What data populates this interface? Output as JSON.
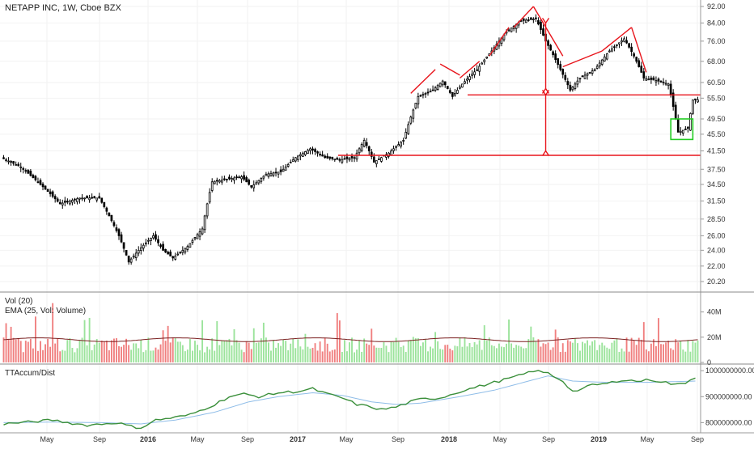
{
  "header": {
    "title": "NETAPP INC, 1W, Cboe BZX"
  },
  "colors": {
    "up": "#9be39b",
    "down": "#f07f7f",
    "candle": "#000000",
    "pattern": "#e8141b",
    "highlight": "#22cc22",
    "accum": "#3a8f3a",
    "accum_ma": "#8fbde8",
    "ema": "#7a1f1f",
    "grid": "#f2f2f2",
    "axis": "#555555"
  },
  "chart_data": [
    {
      "type": "candlestick",
      "title": "NETAPP INC, 1W, Cboe BZX",
      "x_labels": [
        "May",
        "Sep",
        "2016",
        "May",
        "Sep",
        "2017",
        "May",
        "Sep",
        "2018",
        "May",
        "Sep",
        "2019",
        "May",
        "Sep"
      ],
      "y_ticks": [
        "92.00",
        "84.00",
        "76.00",
        "68.00",
        "60.50",
        "55.50",
        "49.50",
        "45.50",
        "41.50",
        "37.50",
        "34.50",
        "31.50",
        "28.50",
        "26.00",
        "24.00",
        "22.00",
        "20.20"
      ],
      "ylim": [
        20.2,
        92
      ],
      "y_scale": "log",
      "key_points": [
        [
          0,
          40
        ],
        [
          8,
          38
        ],
        [
          16,
          34.5
        ],
        [
          24,
          31
        ],
        [
          32,
          32
        ],
        [
          40,
          32
        ],
        [
          48,
          26
        ],
        [
          52,
          22.5
        ],
        [
          56,
          24
        ],
        [
          62,
          26
        ],
        [
          66,
          24
        ],
        [
          70,
          23
        ],
        [
          76,
          24.5
        ],
        [
          82,
          27
        ],
        [
          86,
          35
        ],
        [
          92,
          35.5
        ],
        [
          98,
          36
        ],
        [
          102,
          34
        ],
        [
          108,
          36.5
        ],
        [
          114,
          37
        ],
        [
          120,
          40
        ],
        [
          126,
          42
        ],
        [
          132,
          40
        ],
        [
          138,
          39.5
        ],
        [
          144,
          40
        ],
        [
          148,
          44
        ],
        [
          152,
          39
        ],
        [
          158,
          41
        ],
        [
          164,
          44
        ],
        [
          170,
          56
        ],
        [
          176,
          58
        ],
        [
          180,
          61
        ],
        [
          184,
          56
        ],
        [
          188,
          60
        ],
        [
          194,
          65
        ],
        [
          200,
          72
        ],
        [
          206,
          80
        ],
        [
          212,
          85
        ],
        [
          218,
          86
        ],
        [
          222,
          76
        ],
        [
          228,
          65
        ],
        [
          232,
          58
        ],
        [
          236,
          62
        ],
        [
          242,
          65
        ],
        [
          248,
          72
        ],
        [
          254,
          77
        ],
        [
          258,
          70
        ],
        [
          262,
          62
        ],
        [
          268,
          61
        ],
        [
          272,
          60
        ],
        [
          276,
          46
        ],
        [
          280,
          47
        ],
        [
          282,
          55
        ]
      ],
      "horizontal_levels": [
        56.5,
        40.5
      ],
      "pattern_segments": [
        [
          [
            166,
            57
          ],
          [
            176,
            65
          ]
        ],
        [
          [
            178,
            67
          ],
          [
            186,
            63
          ]
        ],
        [
          [
            186,
            62
          ],
          [
            194,
            68
          ]
        ],
        [
          [
            198,
            70
          ],
          [
            206,
            82
          ]
        ],
        [
          [
            208,
            82
          ],
          [
            216,
            92
          ]
        ],
        [
          [
            216,
            92
          ],
          [
            228,
            70
          ]
        ],
        [
          [
            228,
            66
          ],
          [
            244,
            72
          ]
        ],
        [
          [
            244,
            72
          ],
          [
            256,
            82
          ]
        ],
        [
          [
            256,
            82
          ],
          [
            262,
            64
          ]
        ]
      ],
      "arrows": [
        {
          "x": 221,
          "from": 58.5,
          "to": 84
        },
        {
          "x": 221,
          "from": 56.5,
          "to": 41.5
        }
      ],
      "highlight_box": {
        "x1": 273,
        "x2": 280,
        "y_low": 44.2,
        "y_high": 49.5
      }
    },
    {
      "type": "bar",
      "title": "Vol (20)",
      "subtitle": "EMA (25, Vol: Volume)",
      "y_ticks": [
        "40M",
        "20M",
        "0"
      ],
      "ylim": [
        0,
        50
      ],
      "units": "millions of shares",
      "ema_level": 18
    },
    {
      "type": "line",
      "title": "TTAccum/Dist",
      "y_ticks": [
        "1000000000.00",
        "900000000.00",
        "800000000.00"
      ],
      "ylim": [
        770000000,
        1010000000
      ],
      "key_points": [
        [
          0,
          795
        ],
        [
          10,
          802
        ],
        [
          20,
          810
        ],
        [
          26,
          800
        ],
        [
          34,
          790
        ],
        [
          40,
          795
        ],
        [
          46,
          800
        ],
        [
          52,
          785
        ],
        [
          56,
          780
        ],
        [
          62,
          810
        ],
        [
          70,
          820
        ],
        [
          76,
          830
        ],
        [
          86,
          870
        ],
        [
          92,
          900
        ],
        [
          98,
          910
        ],
        [
          104,
          900
        ],
        [
          112,
          915
        ],
        [
          120,
          920
        ],
        [
          126,
          930
        ],
        [
          132,
          910
        ],
        [
          138,
          895
        ],
        [
          144,
          870
        ],
        [
          150,
          860
        ],
        [
          154,
          850
        ],
        [
          160,
          860
        ],
        [
          166,
          880
        ],
        [
          170,
          890
        ],
        [
          178,
          895
        ],
        [
          186,
          920
        ],
        [
          194,
          940
        ],
        [
          202,
          960
        ],
        [
          210,
          980
        ],
        [
          216,
          1000
        ],
        [
          222,
          990
        ],
        [
          228,
          960
        ],
        [
          232,
          920
        ],
        [
          236,
          930
        ],
        [
          240,
          945
        ],
        [
          246,
          950
        ],
        [
          252,
          965
        ],
        [
          258,
          960
        ],
        [
          264,
          965
        ],
        [
          270,
          955
        ],
        [
          274,
          945
        ],
        [
          278,
          955
        ],
        [
          282,
          975
        ]
      ],
      "ma_key_points": [
        [
          0,
          800
        ],
        [
          20,
          802
        ],
        [
          40,
          800
        ],
        [
          56,
          795
        ],
        [
          70,
          810
        ],
        [
          86,
          840
        ],
        [
          100,
          880
        ],
        [
          112,
          900
        ],
        [
          126,
          915
        ],
        [
          138,
          905
        ],
        [
          150,
          880
        ],
        [
          160,
          870
        ],
        [
          170,
          875
        ],
        [
          186,
          900
        ],
        [
          200,
          925
        ],
        [
          214,
          960
        ],
        [
          222,
          980
        ],
        [
          232,
          960
        ],
        [
          246,
          955
        ],
        [
          262,
          955
        ],
        [
          282,
          960
        ]
      ]
    }
  ]
}
